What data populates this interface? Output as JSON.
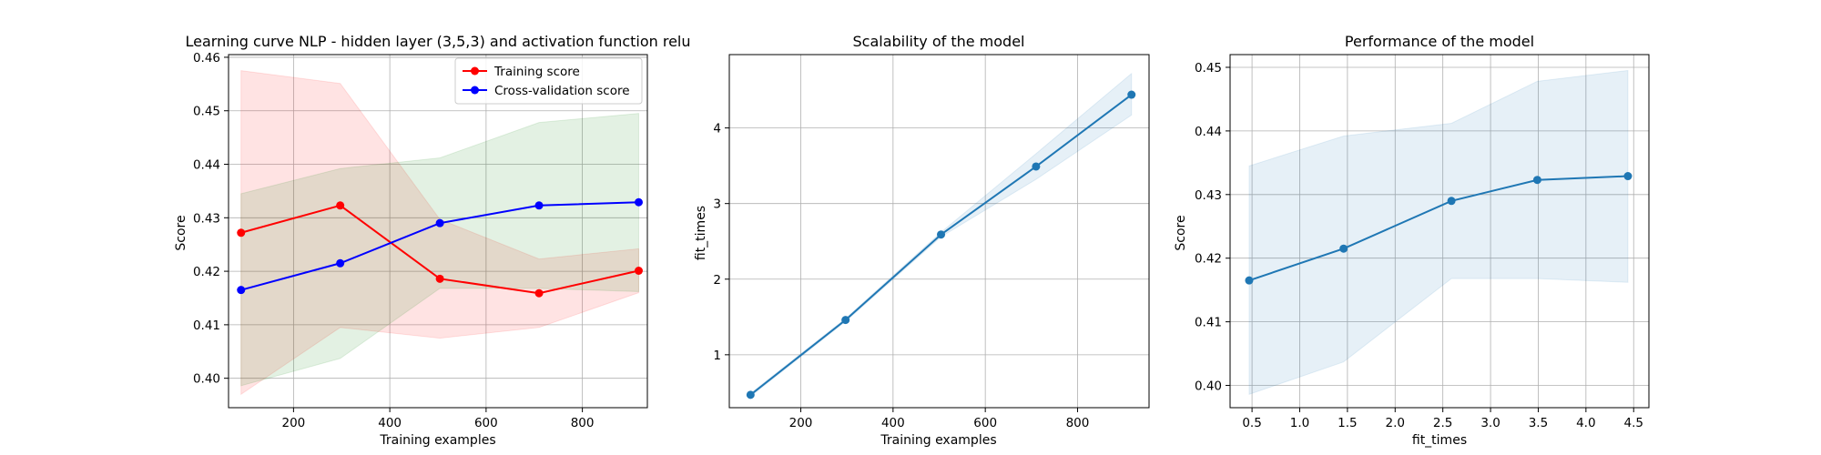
{
  "chart_data": [
    {
      "type": "line",
      "title": "Learning curve NLP - hidden layer (3,5,3) and activation function relu",
      "xlabel": "Training examples",
      "ylabel": "Score",
      "xlim": [
        65,
        935
      ],
      "ylim": [
        0.3945,
        0.4605
      ],
      "xticks": [
        200,
        400,
        600,
        800
      ],
      "xtick_labels": [
        "200",
        "400",
        "600",
        "800"
      ],
      "yticks": [
        0.4,
        0.41,
        0.42,
        0.43,
        0.44,
        0.45,
        0.46
      ],
      "ytick_labels": [
        "0.40",
        "0.41",
        "0.42",
        "0.43",
        "0.44",
        "0.45",
        "0.46"
      ],
      "grid": true,
      "legend": "upper right",
      "series": [
        {
          "name": "Training score",
          "color": "#ff0000",
          "band_color": "#ff0000",
          "x": [
            91,
            297,
            504,
            710,
            917
          ],
          "y": [
            0.4272,
            0.4323,
            0.4186,
            0.4159,
            0.4201
          ],
          "y_low": [
            0.397,
            0.4095,
            0.4075,
            0.4095,
            0.416
          ],
          "y_high": [
            0.4575,
            0.4551,
            0.4297,
            0.4223,
            0.4242
          ]
        },
        {
          "name": "Cross-validation score",
          "color": "#0000ff",
          "band_color": "#008000",
          "x": [
            91,
            297,
            504,
            710,
            917
          ],
          "y": [
            0.4165,
            0.4215,
            0.429,
            0.4323,
            0.4329
          ],
          "y_low": [
            0.3986,
            0.4037,
            0.4168,
            0.4168,
            0.4162
          ],
          "y_high": [
            0.4345,
            0.4392,
            0.4412,
            0.4478,
            0.4495
          ]
        }
      ]
    },
    {
      "type": "line",
      "title": "Scalability of the model",
      "xlabel": "Training examples",
      "ylabel": "fit_times",
      "xlim": [
        45,
        955
      ],
      "ylim": [
        0.3,
        4.97
      ],
      "xticks": [
        200,
        400,
        600,
        800
      ],
      "xtick_labels": [
        "200",
        "400",
        "600",
        "800"
      ],
      "yticks": [
        1,
        2,
        3,
        4
      ],
      "ytick_labels": [
        "1",
        "2",
        "3",
        "4"
      ],
      "grid": true,
      "series": [
        {
          "color": "#1f77b4",
          "band_color": "#1f77b4",
          "x": [
            91,
            297,
            504,
            710,
            917
          ],
          "y": [
            0.47,
            1.46,
            2.59,
            3.49,
            4.44
          ],
          "y_low": [
            0.45,
            1.44,
            2.56,
            3.32,
            4.17
          ],
          "y_high": [
            0.49,
            1.48,
            2.62,
            3.66,
            4.72
          ]
        }
      ]
    },
    {
      "type": "line",
      "title": "Performance of the model",
      "xlabel": "fit_times",
      "ylabel": "Score",
      "xlim": [
        0.27,
        4.66
      ],
      "ylim": [
        0.3965,
        0.452
      ],
      "xticks": [
        0.5,
        1.0,
        1.5,
        2.0,
        2.5,
        3.0,
        3.5,
        4.0,
        4.5
      ],
      "xtick_labels": [
        "0.5",
        "1.0",
        "1.5",
        "2.0",
        "2.5",
        "3.0",
        "3.5",
        "4.0",
        "4.5"
      ],
      "yticks": [
        0.4,
        0.41,
        0.42,
        0.43,
        0.44,
        0.45
      ],
      "ytick_labels": [
        "0.40",
        "0.41",
        "0.42",
        "0.43",
        "0.44",
        "0.45"
      ],
      "grid": true,
      "series": [
        {
          "color": "#1f77b4",
          "band_color": "#1f77b4",
          "x": [
            0.47,
            1.46,
            2.59,
            3.49,
            4.44
          ],
          "y": [
            0.4165,
            0.4215,
            0.429,
            0.4323,
            0.4329
          ],
          "y_low": [
            0.3986,
            0.4037,
            0.4168,
            0.4168,
            0.4162
          ],
          "y_high": [
            0.4345,
            0.4392,
            0.4412,
            0.4478,
            0.4495
          ]
        }
      ]
    }
  ]
}
